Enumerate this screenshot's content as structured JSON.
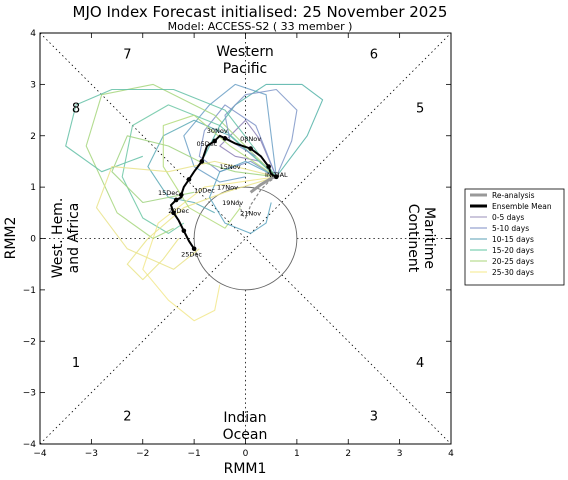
{
  "chart_data": {
    "type": "line",
    "title": "MJO Index Forecast initialised:  25  November 2025",
    "subtitle": "Model: ACCESS-S2 ( 33 member )",
    "xlabel": "RMM1",
    "ylabel": "RMM2",
    "xlim": [
      -4,
      4
    ],
    "ylim": [
      -4,
      4
    ],
    "x_ticks": [
      "−4",
      "−3",
      "−2",
      "−1",
      "0",
      "1",
      "2",
      "3",
      "4"
    ],
    "y_ticks": [
      "−4",
      "−3",
      "−2",
      "−1",
      "0",
      "1",
      "2",
      "3",
      "4"
    ],
    "phase_labels": [
      {
        "text": "1",
        "x": -3.3,
        "y": -2.4
      },
      {
        "text": "2",
        "x": -2.3,
        "y": -3.45
      },
      {
        "text": "3",
        "x": 2.5,
        "y": -3.45
      },
      {
        "text": "4",
        "x": 3.4,
        "y": -2.4
      },
      {
        "text": "5",
        "x": 3.4,
        "y": 2.55
      },
      {
        "text": "6",
        "x": 2.5,
        "y": 3.6
      },
      {
        "text": "7",
        "x": -2.3,
        "y": 3.6
      },
      {
        "text": "8",
        "x": -3.3,
        "y": 2.55
      }
    ],
    "region_labels": {
      "top": [
        "Western",
        "Pacific"
      ],
      "bottom": [
        "Indian",
        "Ocean"
      ],
      "left": [
        "West. Hem.",
        "and Africa"
      ],
      "right": [
        "Maritime",
        "Continent"
      ]
    },
    "legend": {
      "position": "right",
      "entries": [
        {
          "label": "Re-analysis",
          "color": "#999999",
          "width": 3
        },
        {
          "label": "Ensemble Mean",
          "color": "#000000",
          "width": 3
        },
        {
          "label": "0-5 days",
          "color": "#9a8fb8",
          "width": 1
        },
        {
          "label": "5-10 days",
          "color": "#7d8ec4",
          "width": 1
        },
        {
          "label": "10-15 days",
          "color": "#5a9fb5",
          "width": 1
        },
        {
          "label": "15-20 days",
          "color": "#5fc4a0",
          "width": 1
        },
        {
          "label": "20-25 days",
          "color": "#a8d67a",
          "width": 1
        },
        {
          "label": "25-30 days",
          "color": "#f5e98a",
          "width": 1
        }
      ]
    },
    "reanalysis": {
      "x": [
        0.1,
        0.3,
        0.55,
        0.65
      ],
      "y": [
        0.9,
        1.05,
        1.2,
        1.25
      ],
      "color": "#999999"
    },
    "ensemble_mean": {
      "x": [
        0.6,
        0.5,
        0.45,
        0.3,
        0.1,
        -0.2,
        -0.4,
        -0.5,
        -0.6,
        -0.75,
        -0.85,
        -1.0,
        -1.1,
        -1.2,
        -1.25,
        -1.25,
        -1.35,
        -1.45,
        -1.4,
        -1.3,
        -1.2,
        -1.1,
        -1.0
      ],
      "y": [
        1.2,
        1.25,
        1.4,
        1.6,
        1.75,
        1.85,
        1.95,
        2.0,
        1.9,
        1.8,
        1.5,
        1.3,
        1.15,
        1.0,
        0.85,
        0.8,
        0.75,
        0.65,
        0.5,
        0.35,
        0.15,
        -0.05,
        -0.2
      ],
      "color": "#000000"
    },
    "ensemble_grey": {
      "x": [
        0.6,
        0.45,
        0.3,
        0.2,
        0.1,
        0.05,
        0.0,
        -0.05,
        -0.1,
        -0.15
      ],
      "y": [
        1.2,
        1.1,
        0.95,
        0.8,
        0.65,
        0.5,
        0.4,
        0.45,
        0.6,
        0.75
      ],
      "color": "#888888"
    },
    "date_labels": [
      {
        "text": "INITIAL",
        "x": 0.6,
        "y": 1.2
      },
      {
        "text": "30Nov",
        "x": -0.55,
        "y": 2.05
      },
      {
        "text": "05Dec",
        "x": -0.75,
        "y": 1.8
      },
      {
        "text": "15Nov",
        "x": -0.3,
        "y": 1.35
      },
      {
        "text": "10Dec",
        "x": -0.8,
        "y": 0.9
      },
      {
        "text": "15Dec",
        "x": -1.5,
        "y": 0.85
      },
      {
        "text": "20Dec",
        "x": -1.3,
        "y": 0.5
      },
      {
        "text": "25Dec",
        "x": -1.05,
        "y": -0.35
      },
      {
        "text": "17Nov",
        "x": -0.35,
        "y": 0.95
      },
      {
        "text": "19Nov",
        "x": -0.25,
        "y": 0.65
      },
      {
        "text": "21Nov",
        "x": 0.1,
        "y": 0.45
      },
      {
        "text": "08Nov",
        "x": 0.1,
        "y": 1.9
      }
    ],
    "member_groups": [
      {
        "color": "#8c7fb5",
        "x": [
          0.6,
          0.3,
          0.0,
          -0.3,
          -0.5,
          -0.2,
          0.3,
          0.6
        ],
        "y": [
          1.2,
          1.9,
          2.3,
          2.0,
          1.8,
          1.6,
          1.5,
          1.2
        ]
      },
      {
        "color": "#7c91c7",
        "x": [
          0.6,
          0.2,
          -0.4,
          -0.8,
          -0.9,
          -0.5,
          0.1,
          0.6
        ],
        "y": [
          1.2,
          2.2,
          2.6,
          2.1,
          1.6,
          1.3,
          1.5,
          1.2
        ]
      },
      {
        "color": "#6a9fc5",
        "x": [
          0.6,
          0.4,
          -0.2,
          -0.7,
          -1.2,
          -1.0,
          -0.5,
          0.0
        ],
        "y": [
          1.2,
          2.8,
          3.0,
          2.6,
          2.0,
          1.4,
          1.1,
          1.2
        ]
      },
      {
        "color": "#5aa9b5",
        "x": [
          0.6,
          -0.3,
          -1.0,
          -1.6,
          -1.9,
          -1.5,
          -1.0,
          -0.6
        ],
        "y": [
          1.2,
          2.0,
          2.3,
          2.0,
          1.4,
          0.8,
          0.7,
          0.5
        ]
      },
      {
        "color": "#6cc7a5",
        "x": [
          0.6,
          -0.5,
          -1.5,
          -2.2,
          -2.4,
          -2.0,
          -1.5,
          -1.2
        ],
        "y": [
          1.2,
          2.2,
          2.6,
          2.2,
          1.2,
          0.4,
          0.1,
          0.3
        ]
      },
      {
        "color": "#a6d67c",
        "x": [
          0.6,
          -0.6,
          -1.8,
          -2.8,
          -3.1,
          -2.5,
          -1.8,
          -1.4
        ],
        "y": [
          1.2,
          2.4,
          3.0,
          2.8,
          1.8,
          0.5,
          0.0,
          0.2
        ]
      },
      {
        "color": "#f2e78c",
        "x": [
          0.6,
          -0.8,
          -1.7,
          -2.0,
          -1.5,
          -1.0,
          -0.6,
          -0.5
        ],
        "y": [
          1.2,
          1.0,
          0.3,
          -0.6,
          -1.2,
          -1.6,
          -1.4,
          -0.9
        ]
      },
      {
        "color": "#eae487",
        "x": [
          0.6,
          -0.4,
          -1.2,
          -1.9,
          -2.3,
          -2.0,
          -1.6,
          -1.3
        ],
        "y": [
          1.2,
          0.9,
          0.6,
          0.0,
          -0.5,
          -0.8,
          -0.4,
          0.0
        ]
      },
      {
        "color": "#9fd27e",
        "x": [
          0.6,
          -0.2,
          -0.9,
          -1.5,
          -2.3,
          -2.6,
          -2.0,
          -1.0
        ],
        "y": [
          1.2,
          1.3,
          1.5,
          1.8,
          2.0,
          1.3,
          0.7,
          0.9
        ]
      },
      {
        "color": "#54b3a8",
        "x": [
          0.6,
          1.2,
          1.5,
          1.1,
          0.4,
          -0.2,
          -0.5,
          -0.8
        ],
        "y": [
          1.2,
          2.0,
          2.7,
          3.0,
          3.0,
          2.6,
          2.2,
          1.6
        ]
      },
      {
        "color": "#7f96c8",
        "x": [
          0.6,
          0.9,
          1.0,
          0.6,
          0.0,
          -0.4,
          -0.3,
          0.2
        ],
        "y": [
          1.2,
          1.9,
          2.5,
          2.9,
          2.8,
          2.4,
          1.9,
          1.6
        ]
      },
      {
        "color": "#63bfa6",
        "x": [
          0.6,
          -0.4,
          -1.4,
          -2.6,
          -3.3,
          -3.5,
          -2.8,
          -2.0
        ],
        "y": [
          1.2,
          2.5,
          2.9,
          2.9,
          2.6,
          1.8,
          1.3,
          1.6
        ]
      },
      {
        "color": "#b1da7a",
        "x": [
          0.6,
          -0.3,
          -1.0,
          -1.6,
          -1.6,
          -1.1,
          -0.4,
          -0.1
        ],
        "y": [
          1.2,
          1.8,
          2.4,
          2.2,
          1.4,
          0.6,
          0.2,
          0.6
        ]
      },
      {
        "color": "#e9e38a",
        "x": [
          0.6,
          -0.6,
          -1.5,
          -2.6,
          -2.9,
          -2.3,
          -1.4,
          -0.9
        ],
        "y": [
          1.2,
          1.5,
          1.3,
          1.4,
          0.6,
          -0.2,
          -0.6,
          -0.2
        ]
      },
      {
        "color": "#5ba3bf",
        "x": [
          0.6,
          0.0,
          -0.5,
          -0.7,
          -0.4,
          0.1,
          0.4,
          0.5
        ],
        "y": [
          1.2,
          1.5,
          1.3,
          0.8,
          0.3,
          0.1,
          0.3,
          0.7
        ]
      }
    ]
  }
}
